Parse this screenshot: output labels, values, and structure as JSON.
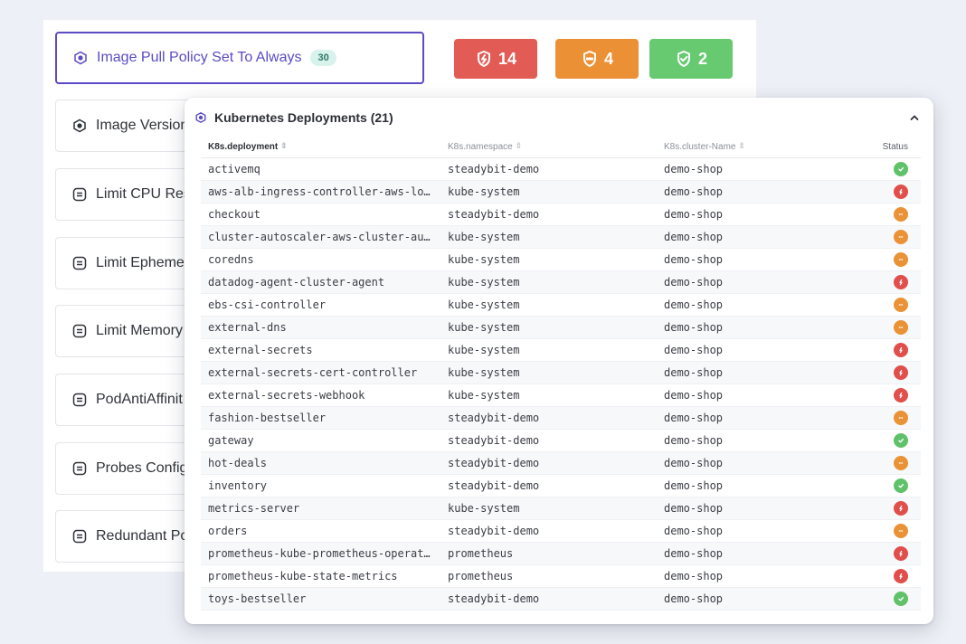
{
  "policies": [
    {
      "label": "Image Pull Policy Set To Always",
      "count": "30",
      "active": true,
      "icon": "hexagon-dot-icon"
    },
    {
      "label": "Image Version",
      "icon": "hexagon-dot-icon"
    },
    {
      "label": "Limit CPU Res",
      "icon": "stack-icon"
    },
    {
      "label": "Limit Epheme",
      "icon": "stack-icon"
    },
    {
      "label": "Limit Memory",
      "icon": "stack-icon"
    },
    {
      "label": "PodAntiAffinit",
      "icon": "stack-icon"
    },
    {
      "label": "Probes Config",
      "icon": "stack-icon"
    },
    {
      "label": "Redundant Po",
      "icon": "stack-icon"
    }
  ],
  "stats": {
    "failed": {
      "value": "14",
      "color": "#e35b55",
      "icon": "shield-bolt-icon"
    },
    "warning": {
      "value": "4",
      "color": "#ec9036",
      "icon": "shield-dots-icon"
    },
    "passed": {
      "value": "2",
      "color": "#67c970",
      "icon": "shield-check-icon"
    }
  },
  "popup": {
    "title": "Kubernetes Deployments (21)",
    "columns": [
      "K8s.deployment",
      "K8s.namespace",
      "K8s.cluster-Name",
      "Status"
    ],
    "rows": [
      {
        "deployment": "activemq",
        "namespace": "steadybit-demo",
        "cluster": "demo-shop",
        "status": "green"
      },
      {
        "deployment": "aws-alb-ingress-controller-aws-lo…",
        "namespace": "kube-system",
        "cluster": "demo-shop",
        "status": "red"
      },
      {
        "deployment": "checkout",
        "namespace": "steadybit-demo",
        "cluster": "demo-shop",
        "status": "orange"
      },
      {
        "deployment": "cluster-autoscaler-aws-cluster-au…",
        "namespace": "kube-system",
        "cluster": "demo-shop",
        "status": "orange"
      },
      {
        "deployment": "coredns",
        "namespace": "kube-system",
        "cluster": "demo-shop",
        "status": "orange"
      },
      {
        "deployment": "datadog-agent-cluster-agent",
        "namespace": "kube-system",
        "cluster": "demo-shop",
        "status": "red"
      },
      {
        "deployment": "ebs-csi-controller",
        "namespace": "kube-system",
        "cluster": "demo-shop",
        "status": "orange"
      },
      {
        "deployment": "external-dns",
        "namespace": "kube-system",
        "cluster": "demo-shop",
        "status": "orange"
      },
      {
        "deployment": "external-secrets",
        "namespace": "kube-system",
        "cluster": "demo-shop",
        "status": "red"
      },
      {
        "deployment": "external-secrets-cert-controller",
        "namespace": "kube-system",
        "cluster": "demo-shop",
        "status": "red"
      },
      {
        "deployment": "external-secrets-webhook",
        "namespace": "kube-system",
        "cluster": "demo-shop",
        "status": "red"
      },
      {
        "deployment": "fashion-bestseller",
        "namespace": "steadybit-demo",
        "cluster": "demo-shop",
        "status": "orange"
      },
      {
        "deployment": "gateway",
        "namespace": "steadybit-demo",
        "cluster": "demo-shop",
        "status": "green"
      },
      {
        "deployment": "hot-deals",
        "namespace": "steadybit-demo",
        "cluster": "demo-shop",
        "status": "orange"
      },
      {
        "deployment": "inventory",
        "namespace": "steadybit-demo",
        "cluster": "demo-shop",
        "status": "green"
      },
      {
        "deployment": "metrics-server",
        "namespace": "kube-system",
        "cluster": "demo-shop",
        "status": "red"
      },
      {
        "deployment": "orders",
        "namespace": "steadybit-demo",
        "cluster": "demo-shop",
        "status": "orange"
      },
      {
        "deployment": "prometheus-kube-prometheus-operat…",
        "namespace": "prometheus",
        "cluster": "demo-shop",
        "status": "red"
      },
      {
        "deployment": "prometheus-kube-state-metrics",
        "namespace": "prometheus",
        "cluster": "demo-shop",
        "status": "red"
      },
      {
        "deployment": "toys-bestseller",
        "namespace": "steadybit-demo",
        "cluster": "demo-shop",
        "status": "green"
      }
    ]
  },
  "status_colors": {
    "green": "#5fc26a",
    "orange": "#ea9236",
    "red": "#e04f4b"
  }
}
